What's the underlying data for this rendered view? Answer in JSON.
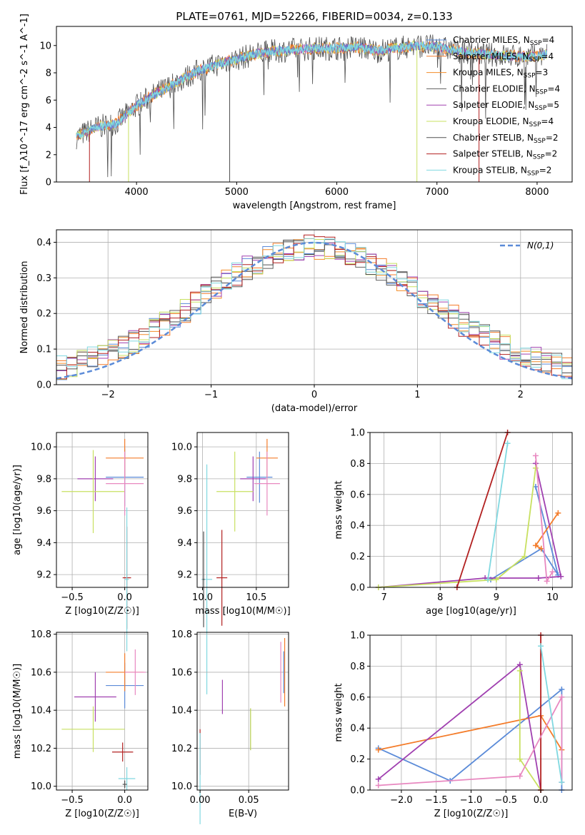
{
  "title": "PLATE=0761, MJD=52266, FIBERID=0034, z=0.133",
  "colors": {
    "chabrier_miles": "#5b8bd8",
    "salpeter_miles": "#f47c2a",
    "kroupa_miles": "#f28c28",
    "chabrier_elodie": "#5f5f5f",
    "salpeter_elodie": "#a040b0",
    "kroupa_elodie": "#c8e060",
    "chabrier_stelib": "#505050",
    "salpeter_stelib": "#b22020",
    "kroupa_stelib": "#80d8e0",
    "gaussian": "#5b8bd8",
    "grid": "#b0b0b0",
    "pink": "#e888c0",
    "dark_red": "#a01818",
    "lime": "#c0e040",
    "purple": "#9c30a8",
    "teal": "#70d0d8"
  },
  "chart_data": [
    {
      "id": "spectrum",
      "type": "line",
      "xlabel": "wavelength [Angstrom, rest frame]",
      "ylabel": "Flux [f_λ10^-17 erg cm^-2 s^-1 A^-1]",
      "xlim": [
        3200,
        8350
      ],
      "ylim": [
        0,
        11.4
      ],
      "xticks": [
        4000,
        5000,
        6000,
        7000,
        8000
      ],
      "yticks": [
        0,
        2,
        4,
        6,
        8,
        10
      ],
      "grid": false,
      "legend_position": "right",
      "legend": [
        {
          "name": "Chabrier MILES, N_SSP=4"
        },
        {
          "name": "Salpeter MILES, N_SSP=4"
        },
        {
          "name": "Kroupa MILES, N_SSP=3"
        },
        {
          "name": "Chabrier ELODIE, N_SSP=4"
        },
        {
          "name": "Salpeter ELODIE, N_SSP=5"
        },
        {
          "name": "Kroupa ELODIE, N_SSP=4"
        },
        {
          "name": "Chabrier STELIB, N_SSP=2"
        },
        {
          "name": "Salpeter STELIB, N_SSP=2"
        },
        {
          "name": "Kroupa STELIB, N_SSP=2"
        }
      ],
      "continuum_anchor_points": [
        [
          3400,
          3.3
        ],
        [
          3600,
          4.0
        ],
        [
          3800,
          4.3
        ],
        [
          4000,
          5.6
        ],
        [
          4200,
          6.5
        ],
        [
          4400,
          7.3
        ],
        [
          4600,
          8.1
        ],
        [
          4800,
          8.6
        ],
        [
          5000,
          9.0
        ],
        [
          5200,
          9.4
        ],
        [
          5400,
          9.6
        ],
        [
          5600,
          9.7
        ],
        [
          5800,
          9.8
        ],
        [
          6000,
          9.8
        ],
        [
          6200,
          9.9
        ],
        [
          6400,
          9.6
        ],
        [
          6600,
          9.8
        ],
        [
          6800,
          10.0
        ],
        [
          7000,
          9.9
        ],
        [
          7200,
          9.6
        ],
        [
          7400,
          9.4
        ],
        [
          7600,
          9.3
        ],
        [
          7800,
          9.2
        ],
        [
          8000,
          9.2
        ],
        [
          8100,
          9.4
        ]
      ],
      "dropouts": [
        {
          "x": 3530,
          "ymin": 0,
          "color": "#b22020"
        },
        {
          "x": 3920,
          "ymin": 0,
          "color": "#c8e060"
        },
        {
          "x": 4930,
          "ymin": 0,
          "color": "#505050"
        },
        {
          "x": 6800,
          "ymin": 0,
          "color": "#c8e060"
        },
        {
          "x": 7420,
          "ymin": 0,
          "color": "#b22020"
        }
      ]
    },
    {
      "id": "residuals",
      "type": "area",
      "xlabel": "(data-model)/error",
      "ylabel": "Normed distribution",
      "xlim": [
        -2.5,
        2.5
      ],
      "ylim": [
        0,
        0.435
      ],
      "xticks": [
        -2,
        -1,
        0,
        1,
        2
      ],
      "yticks": [
        0.0,
        0.1,
        0.2,
        0.3,
        0.4
      ],
      "grid": true,
      "legend_position": "top-right",
      "legend": [
        {
          "name": "N(0,1)",
          "style": "dashed"
        }
      ],
      "gaussian": {
        "mean": 0,
        "sigma": 1
      }
    },
    {
      "id": "age_vs_Z",
      "type": "scatter",
      "xlabel": "Z [log10(Z/Z☉)]",
      "ylabel": "age [log10(age/yr)]",
      "xlim": [
        -0.65,
        0.22
      ],
      "ylim": [
        9.12,
        10.09
      ],
      "xticks": [
        -0.5,
        0.0
      ],
      "yticks": [
        9.2,
        9.4,
        9.6,
        9.8,
        10.0
      ],
      "grid": true,
      "points": [
        {
          "x": 0.0,
          "y": 9.81,
          "xerr": 0.18,
          "yerr": 0.18,
          "color": "#5b8bd8"
        },
        {
          "x": 0.0,
          "y": 9.93,
          "xerr": 0.18,
          "yerr": 0.12,
          "color": "#f47c2a"
        },
        {
          "x": -0.28,
          "y": 9.8,
          "xerr": 0.17,
          "yerr": 0.14,
          "color": "#a040b0"
        },
        {
          "x": -0.3,
          "y": 9.72,
          "xerr": 0.3,
          "yerr": 0.26,
          "color": "#c8e060"
        },
        {
          "x": 0.02,
          "y": 9.18,
          "xerr": 0.04,
          "yerr": 0.32,
          "color": "#b22020"
        },
        {
          "x": 0.0,
          "y": 9.77,
          "xerr": 0.18,
          "yerr": 0.2,
          "color": "#e888c0"
        },
        {
          "x": 0.02,
          "y": 9.17,
          "xerr": 0.02,
          "yerr": 0.45,
          "color": "#80d8e0"
        }
      ]
    },
    {
      "id": "age_vs_mass",
      "type": "scatter",
      "xlabel": "mass [log10(M/M☉)]",
      "ylabel": "",
      "xlim": [
        9.95,
        10.8
      ],
      "ylim": [
        9.12,
        10.09
      ],
      "xticks": [
        10.0,
        10.5
      ],
      "yticks": [
        9.2,
        9.4,
        9.6,
        9.8,
        10.0
      ],
      "grid": true,
      "points": [
        {
          "x": 10.53,
          "y": 9.81,
          "xerr": 0.12,
          "yerr": 0.16,
          "color": "#5b8bd8"
        },
        {
          "x": 10.6,
          "y": 9.93,
          "xerr": 0.1,
          "yerr": 0.12,
          "color": "#f47c2a"
        },
        {
          "x": 10.47,
          "y": 9.8,
          "xerr": 0.12,
          "yerr": 0.14,
          "color": "#a040b0"
        },
        {
          "x": 10.3,
          "y": 9.72,
          "xerr": 0.17,
          "yerr": 0.25,
          "color": "#c8e060"
        },
        {
          "x": 10.18,
          "y": 9.18,
          "xerr": 0.05,
          "yerr": 0.3,
          "color": "#b22020"
        },
        {
          "x": 10.6,
          "y": 9.77,
          "xerr": 0.12,
          "yerr": 0.2,
          "color": "#e888c0"
        },
        {
          "x": 10.04,
          "y": 9.17,
          "xerr": 0.05,
          "yerr": 0.72,
          "color": "#80d8e0"
        },
        {
          "x": 10.01,
          "y": 9.17,
          "xerr": 0.01,
          "yerr": 0.3,
          "color": "#505050"
        }
      ]
    },
    {
      "id": "weight_vs_age",
      "type": "line",
      "xlabel": "age [log10(age/yr)]",
      "ylabel": "mass weight",
      "xlim": [
        6.75,
        10.35
      ],
      "ylim": [
        0,
        1.0
      ],
      "xticks": [
        7,
        8,
        9,
        10
      ],
      "yticks": [
        0.0,
        0.2,
        0.4,
        0.6,
        0.8,
        1.0
      ],
      "grid": true,
      "series": [
        {
          "color": "#5b8bd8",
          "points": [
            [
              9.7,
              0.65
            ],
            [
              10.1,
              0.08
            ],
            [
              9.8,
              0.25
            ],
            [
              8.9,
              0.05
            ]
          ]
        },
        {
          "color": "#f47c2a",
          "points": [
            [
              10.1,
              0.48
            ],
            [
              9.7,
              0.27
            ],
            [
              9.8,
              0.25
            ]
          ]
        },
        {
          "color": "#a040b0",
          "points": [
            [
              9.7,
              0.8
            ],
            [
              10.15,
              0.07
            ],
            [
              9.75,
              0.06
            ],
            [
              8.8,
              0.06
            ],
            [
              6.9,
              0.0
            ]
          ]
        },
        {
          "color": "#c8e060",
          "points": [
            [
              9.7,
              0.77
            ],
            [
              9.5,
              0.2
            ],
            [
              9.0,
              0.05
            ],
            [
              6.9,
              0.0
            ]
          ]
        },
        {
          "color": "#b22020",
          "points": [
            [
              8.3,
              0.0
            ],
            [
              9.2,
              1.0
            ]
          ]
        },
        {
          "color": "#e888c0",
          "points": [
            [
              10.0,
              0.1
            ],
            [
              9.9,
              0.04
            ],
            [
              9.7,
              0.85
            ]
          ]
        },
        {
          "color": "#80d8e0",
          "points": [
            [
              9.2,
              0.93
            ],
            [
              8.85,
              0.05
            ]
          ]
        }
      ]
    },
    {
      "id": "mass_vs_Z",
      "type": "scatter",
      "xlabel": "Z [log10(Z/Z☉)]",
      "ylabel": "mass [log10(M/M☉)]",
      "xlim": [
        -0.65,
        0.22
      ],
      "ylim": [
        9.98,
        10.81
      ],
      "xticks": [
        -0.5,
        0.0
      ],
      "yticks": [
        10.0,
        10.2,
        10.4,
        10.6,
        10.8
      ],
      "grid": true,
      "points": [
        {
          "x": 0.0,
          "y": 10.53,
          "xerr": 0.18,
          "yerr": 0.12,
          "color": "#5b8bd8"
        },
        {
          "x": 0.0,
          "y": 10.6,
          "xerr": 0.18,
          "yerr": 0.1,
          "color": "#f47c2a"
        },
        {
          "x": -0.28,
          "y": 10.47,
          "xerr": 0.2,
          "yerr": 0.13,
          "color": "#a040b0"
        },
        {
          "x": -0.3,
          "y": 10.3,
          "xerr": 0.3,
          "yerr": 0.12,
          "color": "#c8e060"
        },
        {
          "x": -0.02,
          "y": 10.18,
          "xerr": 0.1,
          "yerr": 0.05,
          "color": "#b22020"
        },
        {
          "x": 0.1,
          "y": 10.6,
          "xerr": 0.1,
          "yerr": 0.12,
          "color": "#e888c0"
        },
        {
          "x": 0.02,
          "y": 10.04,
          "xerr": 0.08,
          "yerr": 0.06,
          "color": "#80d8e0"
        },
        {
          "x": 0.0,
          "y": 10.01,
          "xerr": 0.02,
          "yerr": 0.02,
          "color": "#505050"
        }
      ]
    },
    {
      "id": "mass_vs_EBV",
      "type": "scatter",
      "xlabel": "E(B-V)",
      "ylabel": "",
      "xlim": [
        -0.003,
        0.091
      ],
      "ylim": [
        9.98,
        10.81
      ],
      "xticks": [
        0.0,
        0.05
      ],
      "yticks": [
        10.0,
        10.2,
        10.4,
        10.6,
        10.8
      ],
      "grid": true,
      "points": [
        {
          "x": 0.0,
          "y": 10.18,
          "xerr": 0,
          "yerr": 0.12,
          "color": "#b22020"
        },
        {
          "x": 0.0,
          "y": 10.04,
          "xerr": 0,
          "yerr": 0.24,
          "color": "#80d8e0"
        },
        {
          "x": 0.023,
          "y": 10.47,
          "xerr": 0,
          "yerr": 0.09,
          "color": "#a040b0"
        },
        {
          "x": 0.052,
          "y": 10.3,
          "xerr": 0,
          "yerr": 0.11,
          "color": "#505050"
        },
        {
          "x": 0.052,
          "y": 10.3,
          "xerr": 0,
          "yerr": 0.11,
          "color": "#c8e060"
        },
        {
          "x": 0.083,
          "y": 10.6,
          "xerr": 0,
          "yerr": 0.16,
          "color": "#e888c0"
        },
        {
          "x": 0.086,
          "y": 10.6,
          "xerr": 0,
          "yerr": 0.11,
          "color": "#5b8bd8"
        },
        {
          "x": 0.087,
          "y": 10.6,
          "xerr": 0,
          "yerr": 0.18,
          "color": "#f47c2a"
        }
      ]
    },
    {
      "id": "weight_vs_Z",
      "type": "line",
      "xlabel": "Z [log10(Z/Z☉)]",
      "ylabel": "mass weight",
      "xlim": [
        -2.45,
        0.45
      ],
      "ylim": [
        0,
        1.0
      ],
      "xticks": [
        -2.0,
        -1.5,
        -1.0,
        -0.5,
        0.0
      ],
      "yticks": [
        0.0,
        0.2,
        0.4,
        0.6,
        0.8,
        1.0
      ],
      "grid": true,
      "series": [
        {
          "color": "#5b8bd8",
          "points": [
            [
              -2.33,
              0.27
            ],
            [
              -1.3,
              0.06
            ],
            [
              0.3,
              0.65
            ],
            [
              0.3,
              0.0
            ]
          ]
        },
        {
          "color": "#f47c2a",
          "points": [
            [
              -2.33,
              0.26
            ],
            [
              0.0,
              0.48
            ],
            [
              0.3,
              0.26
            ]
          ]
        },
        {
          "color": "#a040b0",
          "points": [
            [
              -2.33,
              0.07
            ],
            [
              -0.3,
              0.81
            ],
            [
              0.0,
              0.0
            ]
          ]
        },
        {
          "color": "#c8e060",
          "points": [
            [
              -0.3,
              0.77
            ],
            [
              -0.3,
              0.2
            ],
            [
              0.0,
              0.0
            ]
          ]
        },
        {
          "color": "#b22020",
          "points": [
            [
              0.0,
              0.0
            ],
            [
              0.0,
              1.0
            ]
          ]
        },
        {
          "color": "#e888c0",
          "points": [
            [
              -2.33,
              0.03
            ],
            [
              -0.3,
              0.09
            ],
            [
              0.3,
              0.6
            ],
            [
              0.3,
              0.05
            ]
          ]
        },
        {
          "color": "#80d8e0",
          "points": [
            [
              0.0,
              0.93
            ],
            [
              0.3,
              0.05
            ]
          ]
        }
      ]
    }
  ],
  "labels": {
    "spec_ylabel": "Flux [f_λ10^-17 erg cm^-2 s^-1 A^-1]",
    "spec_xlabel": "wavelength [Angstrom, rest frame]",
    "hist_xlabel": "(data-model)/error",
    "hist_ylabel": "Normed distribution",
    "gauss_legend": "N(0,1)",
    "age_ylabel": "age  [log10(age/yr)]",
    "z_xlabel": "Z [log10(Z/Z☉)]",
    "mass_xlabel": "mass [log10(M/M☉)]",
    "weight_ylabel": "mass weight",
    "age_xlabel": "age  [log10(age/yr)]",
    "mass_ylabel": "mass [log10(M/M☉)]",
    "ebv_xlabel": "E(B-V)"
  }
}
